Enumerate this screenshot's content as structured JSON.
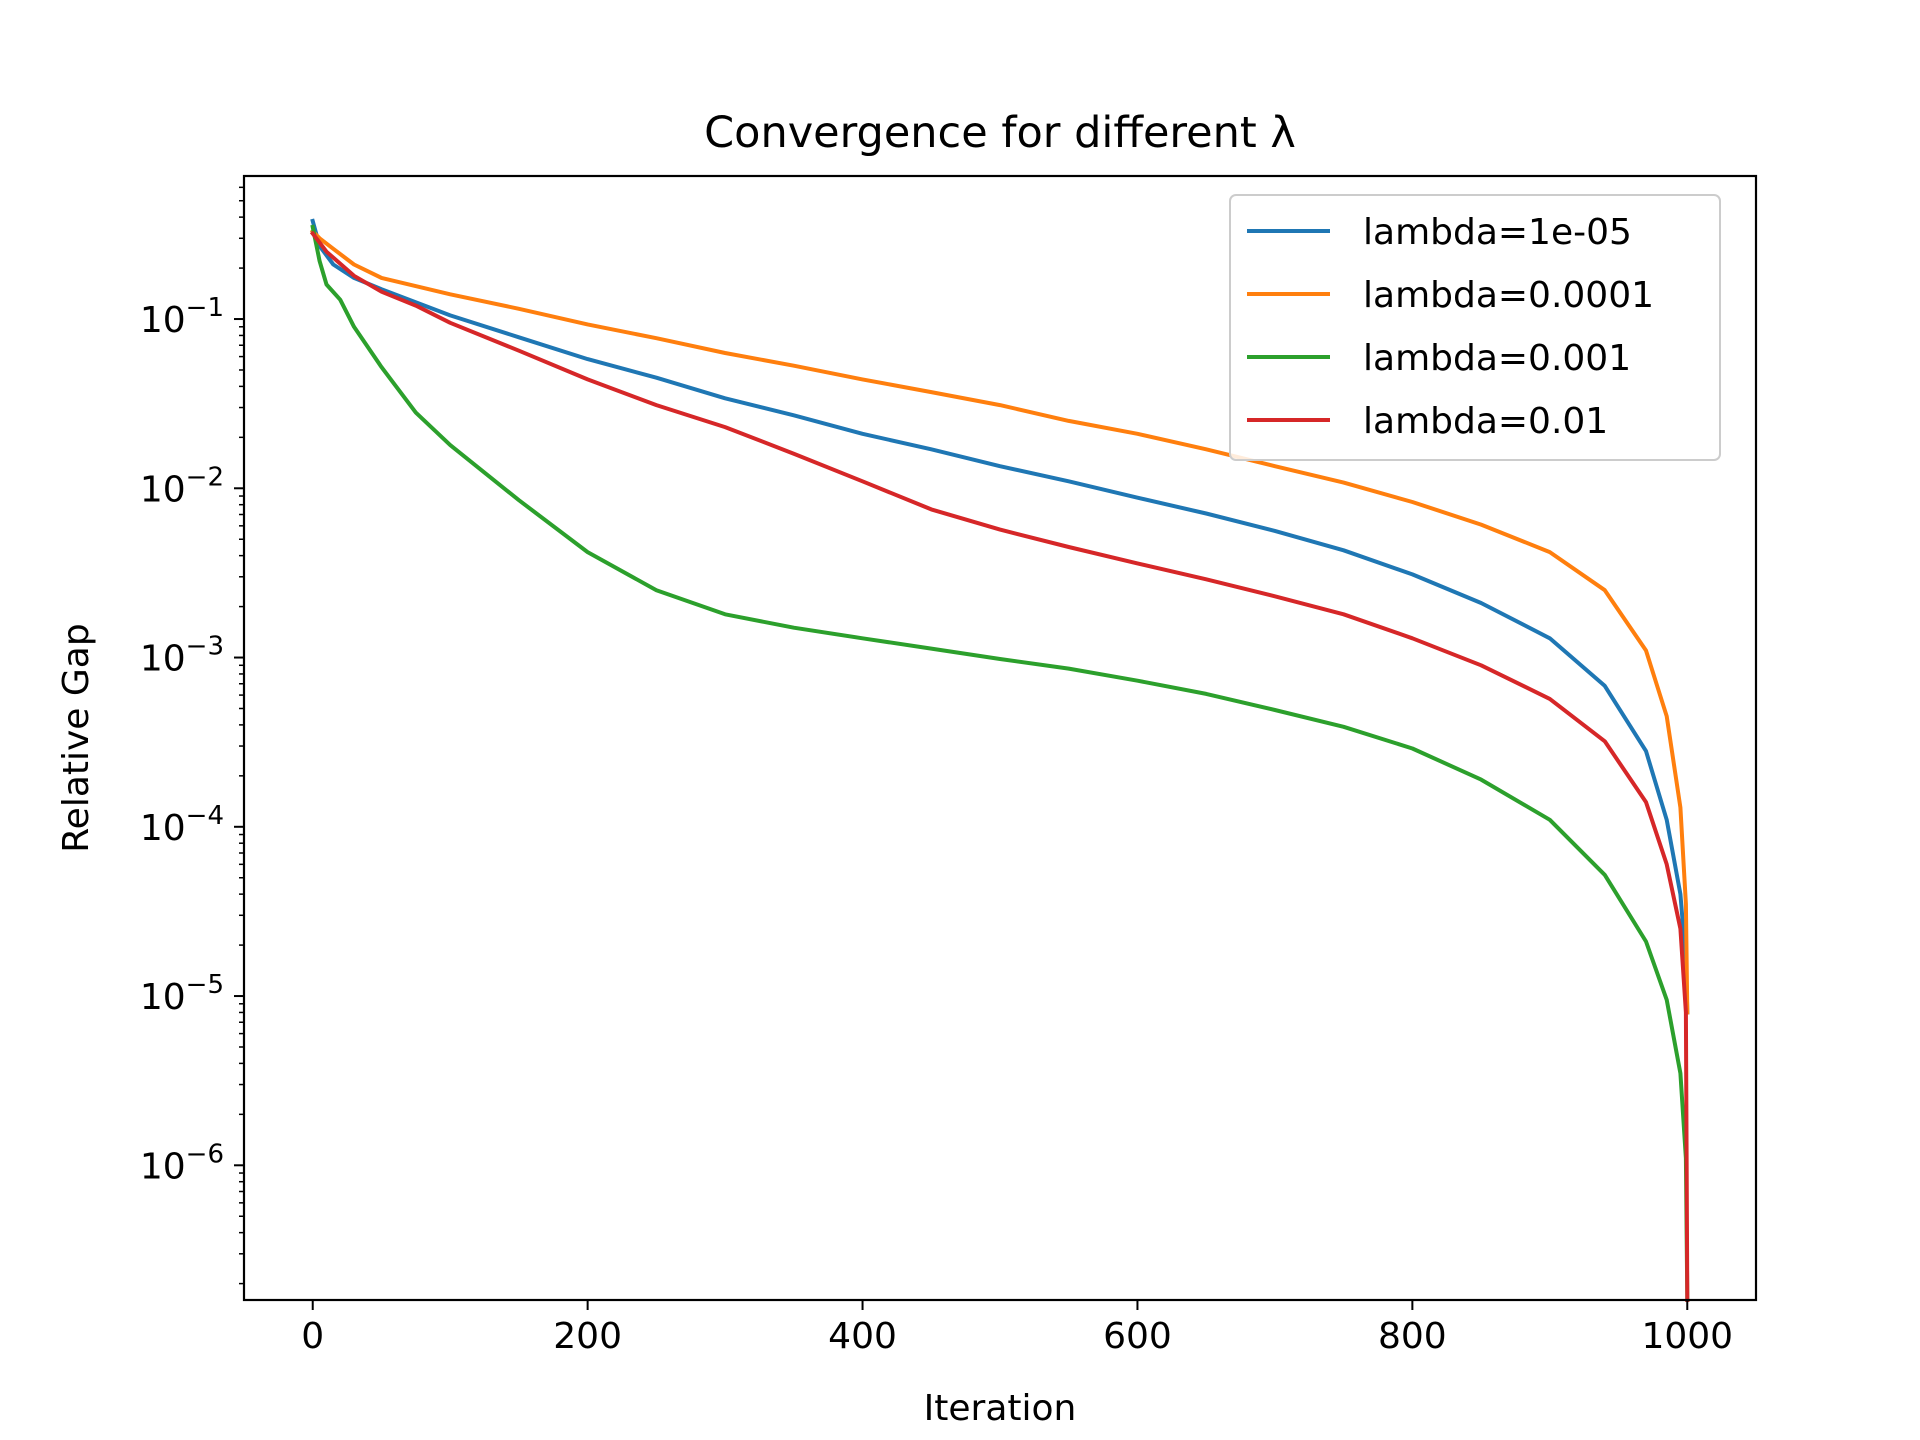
{
  "chart_data": {
    "type": "line",
    "title": "Convergence for different λ",
    "xlabel": "Iteration",
    "ylabel": "Relative Gap",
    "xlim": [
      -50,
      1050
    ],
    "ylim": [
      1.6e-07,
      0.7
    ],
    "yscale": "log",
    "grid": false,
    "legend_position": "top-right",
    "x_ticks": [
      0,
      200,
      400,
      600,
      800,
      1000
    ],
    "x_tick_labels": [
      "0",
      "200",
      "400",
      "600",
      "800",
      "1000"
    ],
    "y_ticks": [
      {
        "value": 0.1,
        "base": "10",
        "exp": "−1"
      },
      {
        "value": 0.01,
        "base": "10",
        "exp": "−2"
      },
      {
        "value": 0.001,
        "base": "10",
        "exp": "−3"
      },
      {
        "value": 0.0001,
        "base": "10",
        "exp": "−4"
      },
      {
        "value": 1e-05,
        "base": "10",
        "exp": "−5"
      },
      {
        "value": 1e-06,
        "base": "10",
        "exp": "−6"
      }
    ],
    "series": [
      {
        "name": "lambda=1e-05",
        "color": "#1f77b4",
        "points": [
          [
            0,
            0.38
          ],
          [
            5,
            0.27
          ],
          [
            15,
            0.21
          ],
          [
            30,
            0.175
          ],
          [
            50,
            0.15
          ],
          [
            100,
            0.105
          ],
          [
            150,
            0.078
          ],
          [
            200,
            0.058
          ],
          [
            250,
            0.045
          ],
          [
            300,
            0.034
          ],
          [
            350,
            0.027
          ],
          [
            400,
            0.021
          ],
          [
            450,
            0.017
          ],
          [
            500,
            0.0135
          ],
          [
            550,
            0.011
          ],
          [
            600,
            0.0088
          ],
          [
            650,
            0.0071
          ],
          [
            700,
            0.0056
          ],
          [
            750,
            0.0043
          ],
          [
            800,
            0.0031
          ],
          [
            850,
            0.0021
          ],
          [
            900,
            0.0013
          ],
          [
            940,
            0.00068
          ],
          [
            970,
            0.00028
          ],
          [
            985,
            0.00011
          ],
          [
            995,
            4e-05
          ],
          [
            999,
            1.6e-05
          ],
          [
            1000,
            8e-06
          ]
        ]
      },
      {
        "name": "lambda=0.0001",
        "color": "#ff7f0e",
        "points": [
          [
            0,
            0.33
          ],
          [
            5,
            0.3
          ],
          [
            15,
            0.26
          ],
          [
            30,
            0.21
          ],
          [
            50,
            0.175
          ],
          [
            100,
            0.14
          ],
          [
            150,
            0.115
          ],
          [
            200,
            0.093
          ],
          [
            250,
            0.077
          ],
          [
            300,
            0.063
          ],
          [
            350,
            0.053
          ],
          [
            400,
            0.044
          ],
          [
            450,
            0.037
          ],
          [
            500,
            0.031
          ],
          [
            550,
            0.025
          ],
          [
            600,
            0.021
          ],
          [
            650,
            0.017
          ],
          [
            700,
            0.0135
          ],
          [
            750,
            0.0108
          ],
          [
            800,
            0.0083
          ],
          [
            850,
            0.0061
          ],
          [
            900,
            0.0042
          ],
          [
            940,
            0.0025
          ],
          [
            970,
            0.0011
          ],
          [
            985,
            0.00045
          ],
          [
            995,
            0.00013
          ],
          [
            999,
            3.5e-05
          ],
          [
            1000,
            8e-06
          ]
        ]
      },
      {
        "name": "lambda=0.001",
        "color": "#2ca02c",
        "points": [
          [
            0,
            0.35
          ],
          [
            5,
            0.22
          ],
          [
            10,
            0.16
          ],
          [
            20,
            0.13
          ],
          [
            30,
            0.09
          ],
          [
            50,
            0.052
          ],
          [
            75,
            0.028
          ],
          [
            100,
            0.018
          ],
          [
            150,
            0.0085
          ],
          [
            200,
            0.0042
          ],
          [
            250,
            0.0025
          ],
          [
            300,
            0.0018
          ],
          [
            350,
            0.0015
          ],
          [
            400,
            0.0013
          ],
          [
            450,
            0.00113
          ],
          [
            500,
            0.00098
          ],
          [
            550,
            0.00086
          ],
          [
            600,
            0.00073
          ],
          [
            650,
            0.00061
          ],
          [
            700,
            0.00049
          ],
          [
            750,
            0.00039
          ],
          [
            800,
            0.00029
          ],
          [
            850,
            0.00019
          ],
          [
            900,
            0.00011
          ],
          [
            940,
            5.2e-05
          ],
          [
            970,
            2.1e-05
          ],
          [
            985,
            9.5e-06
          ],
          [
            995,
            3.5e-06
          ],
          [
            999,
            1.1e-06
          ],
          [
            1000,
            1.6e-07
          ]
        ]
      },
      {
        "name": "lambda=0.01",
        "color": "#d62728",
        "points": [
          [
            0,
            0.32
          ],
          [
            10,
            0.25
          ],
          [
            30,
            0.18
          ],
          [
            50,
            0.145
          ],
          [
            75,
            0.12
          ],
          [
            100,
            0.095
          ],
          [
            150,
            0.065
          ],
          [
            200,
            0.044
          ],
          [
            250,
            0.031
          ],
          [
            300,
            0.023
          ],
          [
            350,
            0.016
          ],
          [
            400,
            0.011
          ],
          [
            450,
            0.0075
          ],
          [
            500,
            0.0057
          ],
          [
            550,
            0.0045
          ],
          [
            600,
            0.0036
          ],
          [
            650,
            0.0029
          ],
          [
            700,
            0.0023
          ],
          [
            750,
            0.0018
          ],
          [
            800,
            0.0013
          ],
          [
            850,
            0.0009
          ],
          [
            900,
            0.00057
          ],
          [
            940,
            0.00032
          ],
          [
            970,
            0.00014
          ],
          [
            985,
            6e-05
          ],
          [
            995,
            2.5e-05
          ],
          [
            999,
            8e-06
          ],
          [
            1000,
            1.6e-07
          ]
        ]
      }
    ]
  }
}
